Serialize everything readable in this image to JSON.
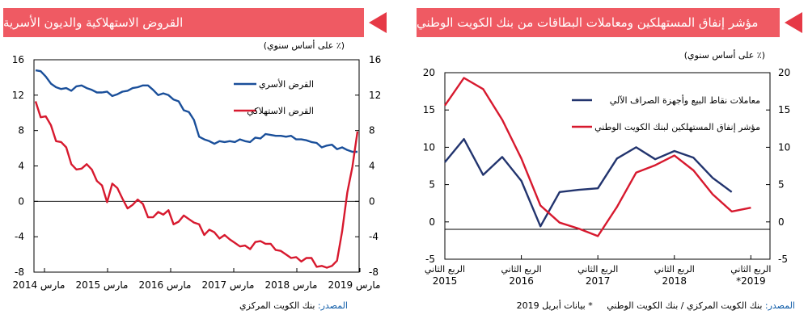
{
  "left_panel": {
    "title": "القروض الاستهلاكية والديون الأسرية",
    "unit_label": "(٪ على أساس سنوي)",
    "source_label": "المصدر:",
    "source_text": "بنك الكويت المركزي",
    "colors": {
      "banner": "#ef5a63",
      "arrow": "#e63946"
    }
  },
  "right_panel": {
    "title": "مؤشر إنفاق المستهلكين ومعاملات البطاقات من بنك الكويت الوطني",
    "unit_label": "(٪ على أساس سنوي)",
    "source_label": "المصدر:",
    "source_text": "بنك الكويت المركزي / بنك الكويت الوطني",
    "footnote": "* بيانات أبريل 2019",
    "colors": {
      "banner": "#ef5a63",
      "arrow": "#e63946"
    }
  },
  "chart_data": [
    {
      "type": "line",
      "title": "القروض الاستهلاكية والديون الأسرية",
      "ylim": [
        -8,
        16
      ],
      "yticks": [
        "16",
        "12",
        "8",
        "4",
        "0",
        "-4",
        "-8"
      ],
      "yticks_right": [
        "16",
        "12",
        "8",
        "4",
        "0",
        "-4",
        "-8"
      ],
      "xticks": [
        "مارس 2014",
        "مارس 2015",
        "مارس 2016",
        "مارس 2017",
        "مارس 2018",
        "مارس 2019"
      ],
      "legend_position": "top-right",
      "grid": false,
      "series": [
        {
          "name": "القرض الأسري",
          "color": "#1a4f9a",
          "values": [
            14.8,
            14.7,
            14.1,
            13.3,
            12.9,
            12.7,
            12.8,
            12.5,
            13.0,
            13.1,
            12.8,
            12.6,
            12.3,
            12.3,
            12.4,
            11.9,
            12.1,
            12.4,
            12.5,
            12.8,
            12.9,
            13.1,
            13.1,
            12.6,
            12.0,
            12.2,
            12.0,
            11.5,
            11.3,
            10.3,
            10.1,
            9.2,
            7.3,
            7.0,
            6.8,
            6.5,
            6.8,
            6.7,
            6.8,
            6.7,
            7.0,
            6.8,
            6.7,
            7.2,
            7.1,
            7.6,
            7.5,
            7.4,
            7.4,
            7.3,
            7.4,
            7.0,
            7.0,
            6.9,
            6.7,
            6.6,
            6.1,
            6.3,
            6.4,
            5.9,
            6.1,
            5.8,
            5.6,
            5.6
          ]
        },
        {
          "name": "القرض الاستهلاكي",
          "color": "#d7192e",
          "values": [
            11.3,
            9.5,
            9.6,
            8.6,
            6.8,
            6.7,
            6.1,
            4.2,
            3.6,
            3.7,
            4.2,
            3.6,
            2.3,
            1.8,
            -0.1,
            2.0,
            1.5,
            0.3,
            -0.8,
            -0.4,
            0.2,
            -0.3,
            -1.8,
            -1.8,
            -1.2,
            -1.5,
            -1.0,
            -2.6,
            -2.3,
            -1.6,
            -2.0,
            -2.4,
            -2.6,
            -3.8,
            -3.2,
            -3.5,
            -4.2,
            -3.8,
            -4.3,
            -4.7,
            -5.1,
            -5.0,
            -5.4,
            -4.6,
            -4.5,
            -4.8,
            -4.8,
            -5.5,
            -5.6,
            -6.0,
            -6.4,
            -6.3,
            -6.8,
            -6.4,
            -6.4,
            -7.4,
            -7.3,
            -7.5,
            -7.3,
            -6.7,
            -3.4,
            1.0,
            3.9,
            7.9
          ]
        }
      ]
    },
    {
      "type": "line",
      "title": "مؤشر إنفاق المستهلكين ومعاملات البطاقات من بنك الكويت الوطني",
      "ylim": [
        -5,
        20
      ],
      "yticks": [
        "20",
        "15",
        "10",
        "5",
        "0",
        "-5"
      ],
      "yticks_right": [
        "20",
        "15",
        "10",
        "5",
        "0",
        "-5"
      ],
      "reference_line": -1,
      "categories": [
        "Q2 2015",
        "Q3 2015",
        "Q4 2015",
        "Q1 2016",
        "Q2 2016",
        "Q3 2016",
        "Q4 2016",
        "Q1 2017",
        "Q2 2017",
        "Q3 2017",
        "Q4 2017",
        "Q1 2018",
        "Q2 2018",
        "Q3 2018",
        "Q4 2018",
        "Q1 2019",
        "Q2 2019"
      ],
      "xtick_labels": [
        {
          "line1": "الربع الثاني",
          "line2": "2015"
        },
        {
          "line1": "الربع الثاني",
          "line2": "2016"
        },
        {
          "line1": "الربع الثاني",
          "line2": "2017"
        },
        {
          "line1": "الربع الثاني",
          "line2": "2018"
        },
        {
          "line1": "الربع الثاني",
          "line2": "*2019"
        }
      ],
      "legend_position": "top-right",
      "grid": false,
      "series": [
        {
          "name": "معاملات نقاط البيع وأجهزة الصراف الآلي",
          "color": "#22346e",
          "values": [
            8.0,
            11.1,
            6.3,
            8.7,
            5.5,
            -0.6,
            4.0,
            4.3,
            4.5,
            8.5,
            10.0,
            8.4,
            9.5,
            8.6,
            5.9,
            4.0,
            null
          ]
        },
        {
          "name": "مؤشر إنفاق المستهلكين لبنك الكويت الوطني",
          "color": "#d7192e",
          "values": [
            15.6,
            19.3,
            17.8,
            13.7,
            8.5,
            2.2,
            -0.1,
            -0.9,
            -1.9,
            2.0,
            6.6,
            7.6,
            8.9,
            6.9,
            3.7,
            1.4,
            1.9
          ]
        }
      ]
    }
  ]
}
